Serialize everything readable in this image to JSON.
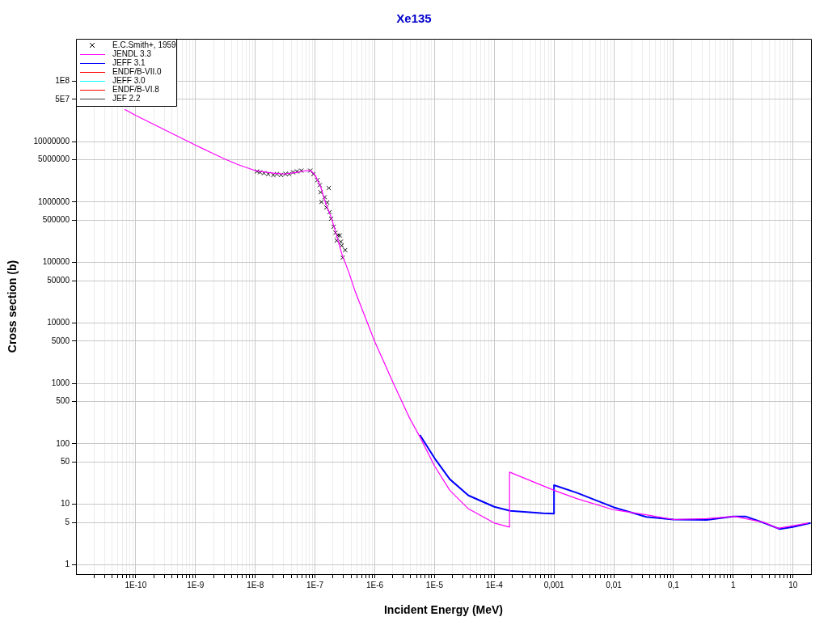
{
  "chart_data": {
    "type": "line",
    "title": "Xe135",
    "xlabel": "Incident Energy (MeV)",
    "ylabel": "Cross section (b)",
    "log": "xy",
    "grid": true,
    "legend": "top left",
    "xlim": [
      1e-11,
      20
    ],
    "ylim": [
      0.7,
      500000000.0
    ],
    "xticks": [
      {
        "value": 2e-11,
        "label": null
      },
      {
        "value": 3e-11,
        "label": null
      },
      {
        "value": 4e-11,
        "label": null
      },
      {
        "value": 5e-11,
        "label": null
      },
      {
        "value": 6e-11,
        "label": null
      },
      {
        "value": 7e-11,
        "label": null
      },
      {
        "value": 8e-11,
        "label": null
      },
      {
        "value": 9e-11,
        "label": null
      },
      {
        "value": 1e-10,
        "label": "1E-10"
      },
      {
        "value": 2e-10,
        "label": null
      },
      {
        "value": 3e-10,
        "label": null
      },
      {
        "value": 4e-10,
        "label": null
      },
      {
        "value": 5e-10,
        "label": null
      },
      {
        "value": 6e-10,
        "label": null
      },
      {
        "value": 7e-10,
        "label": null
      },
      {
        "value": 8e-10,
        "label": null
      },
      {
        "value": 9e-10,
        "label": null
      },
      {
        "value": 1e-09,
        "label": "1E-9"
      },
      {
        "value": 2e-09,
        "label": null
      },
      {
        "value": 3e-09,
        "label": null
      },
      {
        "value": 4e-09,
        "label": null
      },
      {
        "value": 5e-09,
        "label": null
      },
      {
        "value": 6e-09,
        "label": null
      },
      {
        "value": 7e-09,
        "label": null
      },
      {
        "value": 8e-09,
        "label": null
      },
      {
        "value": 9e-09,
        "label": null
      },
      {
        "value": 1e-08,
        "label": "1E-8"
      },
      {
        "value": 2e-08,
        "label": null
      },
      {
        "value": 3e-08,
        "label": null
      },
      {
        "value": 4e-08,
        "label": null
      },
      {
        "value": 5e-08,
        "label": null
      },
      {
        "value": 6e-08,
        "label": null
      },
      {
        "value": 7e-08,
        "label": null
      },
      {
        "value": 8e-08,
        "label": null
      },
      {
        "value": 9e-08,
        "label": null
      },
      {
        "value": 1e-07,
        "label": "1E-7"
      },
      {
        "value": 2e-07,
        "label": null
      },
      {
        "value": 3e-07,
        "label": null
      },
      {
        "value": 4e-07,
        "label": null
      },
      {
        "value": 5e-07,
        "label": null
      },
      {
        "value": 6e-07,
        "label": null
      },
      {
        "value": 7e-07,
        "label": null
      },
      {
        "value": 8e-07,
        "label": null
      },
      {
        "value": 9e-07,
        "label": null
      },
      {
        "value": 1e-06,
        "label": "1E-6"
      },
      {
        "value": 2e-06,
        "label": null
      },
      {
        "value": 3e-06,
        "label": null
      },
      {
        "value": 4e-06,
        "label": null
      },
      {
        "value": 5e-06,
        "label": null
      },
      {
        "value": 6e-06,
        "label": null
      },
      {
        "value": 7e-06,
        "label": null
      },
      {
        "value": 8e-06,
        "label": null
      },
      {
        "value": 9e-06,
        "label": null
      },
      {
        "value": 1e-05,
        "label": "1E-5"
      },
      {
        "value": 2e-05,
        "label": null
      },
      {
        "value": 3e-05,
        "label": null
      },
      {
        "value": 4e-05,
        "label": null
      },
      {
        "value": 5e-05,
        "label": null
      },
      {
        "value": 6e-05,
        "label": null
      },
      {
        "value": 7e-05,
        "label": null
      },
      {
        "value": 8e-05,
        "label": null
      },
      {
        "value": 9e-05,
        "label": null
      },
      {
        "value": 0.0001,
        "label": "1E-4"
      },
      {
        "value": 0.0002,
        "label": null
      },
      {
        "value": 0.0003,
        "label": null
      },
      {
        "value": 0.0004,
        "label": null
      },
      {
        "value": 0.0005,
        "label": null
      },
      {
        "value": 0.0006,
        "label": null
      },
      {
        "value": 0.0007,
        "label": null
      },
      {
        "value": 0.0008,
        "label": null
      },
      {
        "value": 0.0009,
        "label": null
      },
      {
        "value": 0.001,
        "label": "0,001"
      },
      {
        "value": 0.002,
        "label": null
      },
      {
        "value": 0.003,
        "label": null
      },
      {
        "value": 0.004,
        "label": null
      },
      {
        "value": 0.005,
        "label": null
      },
      {
        "value": 0.006,
        "label": null
      },
      {
        "value": 0.007,
        "label": null
      },
      {
        "value": 0.008,
        "label": null
      },
      {
        "value": 0.009,
        "label": null
      },
      {
        "value": 0.01,
        "label": "0,01"
      },
      {
        "value": 0.02,
        "label": null
      },
      {
        "value": 0.03,
        "label": null
      },
      {
        "value": 0.04,
        "label": null
      },
      {
        "value": 0.05,
        "label": null
      },
      {
        "value": 0.06,
        "label": null
      },
      {
        "value": 0.07,
        "label": null
      },
      {
        "value": 0.08,
        "label": null
      },
      {
        "value": 0.09,
        "label": null
      },
      {
        "value": 0.1,
        "label": "0,1"
      },
      {
        "value": 0.2,
        "label": null
      },
      {
        "value": 0.3,
        "label": null
      },
      {
        "value": 0.4,
        "label": null
      },
      {
        "value": 0.5,
        "label": null
      },
      {
        "value": 0.6,
        "label": null
      },
      {
        "value": 0.7,
        "label": null
      },
      {
        "value": 0.8,
        "label": null
      },
      {
        "value": 0.9,
        "label": null
      },
      1,
      {
        "value": 2,
        "label": null
      },
      {
        "value": 3,
        "label": null
      },
      {
        "value": 4,
        "label": null
      },
      {
        "value": 5,
        "label": null
      },
      {
        "value": 6,
        "label": null
      },
      {
        "value": 7,
        "label": null
      },
      {
        "value": 8,
        "label": null
      },
      {
        "value": 9,
        "label": null
      },
      10
    ],
    "yticks": [
      1,
      5,
      10,
      50,
      100,
      500,
      1000,
      5000,
      10000,
      50000,
      100000,
      500000,
      1000000,
      5000000,
      10000000,
      {
        "value": 50000000.0,
        "label": "5E7"
      },
      {
        "value": 100000000.0,
        "label": "1E8"
      }
    ],
    "series": [
      {
        "name": "E.C.Smith+, 1959",
        "type": "scatter",
        "marker": "cross",
        "color": "#000000",
        "x": [
          1.07e-08,
          1.2e-08,
          1.4e-08,
          1.65e-08,
          2e-08,
          2.3e-08,
          2.7e-08,
          3.2e-08,
          3.7e-08,
          4.3e-08,
          5e-08,
          5.9e-08,
          8.3e-08,
          9.4e-08,
          1.1e-07,
          1.2e-07,
          1.24e-07,
          1.45e-07,
          1.7e-07,
          1.28e-07,
          1.6e-07,
          1.55e-07,
          1.75e-07,
          1.86e-07,
          2.05e-07,
          2.2e-07,
          2.4e-07,
          2.3e-07,
          2.7e-07,
          2.8e-07,
          3.2e-07,
          2.9e-07,
          2.6e-07
        ],
        "values": [
          3200000.0,
          3100000.0,
          3000000.0,
          2900000.0,
          2800000.0,
          2900000.0,
          2800000.0,
          2900000.0,
          2900000.0,
          3100000.0,
          3200000.0,
          3300000.0,
          3300000.0,
          2900000.0,
          2300000.0,
          1900000.0,
          1450000.0,
          1200000.0,
          1700000.0,
          1000000.0,
          980000.0,
          810000.0,
          680000.0,
          530000.0,
          390000.0,
          310000.0,
          280000.0,
          230000.0,
          220000.0,
          190000.0,
          160000.0,
          120000.0,
          280000.0
        ]
      },
      {
        "name": "JENDL 3.3",
        "color": "#ff00ff",
        "x": [
          6.5e-11,
          1e-10,
          1e-09,
          3e-09,
          5e-09,
          1e-08,
          2e-08,
          3e-08,
          5e-08,
          7e-08,
          8.5e-08,
          1e-07,
          1.24e-07,
          1.5e-07,
          1.86e-07,
          2.3e-07,
          2.8e-07,
          3.7e-07,
          4.7e-07,
          1e-06,
          2.05e-06,
          3.8e-06,
          5.7e-06,
          1e-05,
          1.8e-05,
          3.7e-05,
          0.0001,
          0.00018,
          0.00018,
          0.001,
          0.0024,
          0.01,
          0.035,
          0.1,
          0.36,
          1.05,
          3.3,
          5.6,
          18
        ],
        "values": [
          34000000.0,
          27000000.0,
          8700000.0,
          5200000.0,
          4200000.0,
          3300000.0,
          3000000.0,
          2900000.0,
          3100000.0,
          3300000.0,
          3300000.0,
          2800000.0,
          1800000.0,
          970000.0,
          560000.0,
          280000.0,
          140000.0,
          68000.0,
          33000.0,
          4900,
          1000,
          270,
          130,
          43,
          17,
          8.4,
          4.9,
          4.2,
          34,
          17,
          12.4,
          8.1,
          6.7,
          5.6,
          5.8,
          6.3,
          5.0,
          4.0,
          4.9
        ]
      },
      {
        "name": "JEFF 3.1",
        "color": "#0000ff",
        "x": [
          5.7e-06,
          1e-05,
          1.8e-05,
          3.7e-05,
          0.0001,
          0.000185,
          0.00066,
          0.001,
          0.001,
          0.0024,
          0.01,
          0.035,
          0.1,
          0.36,
          1.0,
          1.6,
          3.3,
          6.0,
          9.9,
          19.7
        ],
        "values": [
          140,
          58,
          26,
          14,
          9.1,
          7.8,
          7.1,
          7.0,
          20.7,
          15.5,
          8.9,
          6.2,
          5.6,
          5.5,
          6.3,
          6.3,
          4.9,
          3.9,
          4.2,
          4.9
        ]
      },
      {
        "name": "ENDF/B-VII.0",
        "color": "#ff0000"
      },
      {
        "name": "JEFF 3.0",
        "color": "#00ffff"
      },
      {
        "name": "ENDF/B-VI.8",
        "color": "#ff0000"
      },
      {
        "name": "JEF 2.2",
        "color": "#404040"
      }
    ]
  }
}
